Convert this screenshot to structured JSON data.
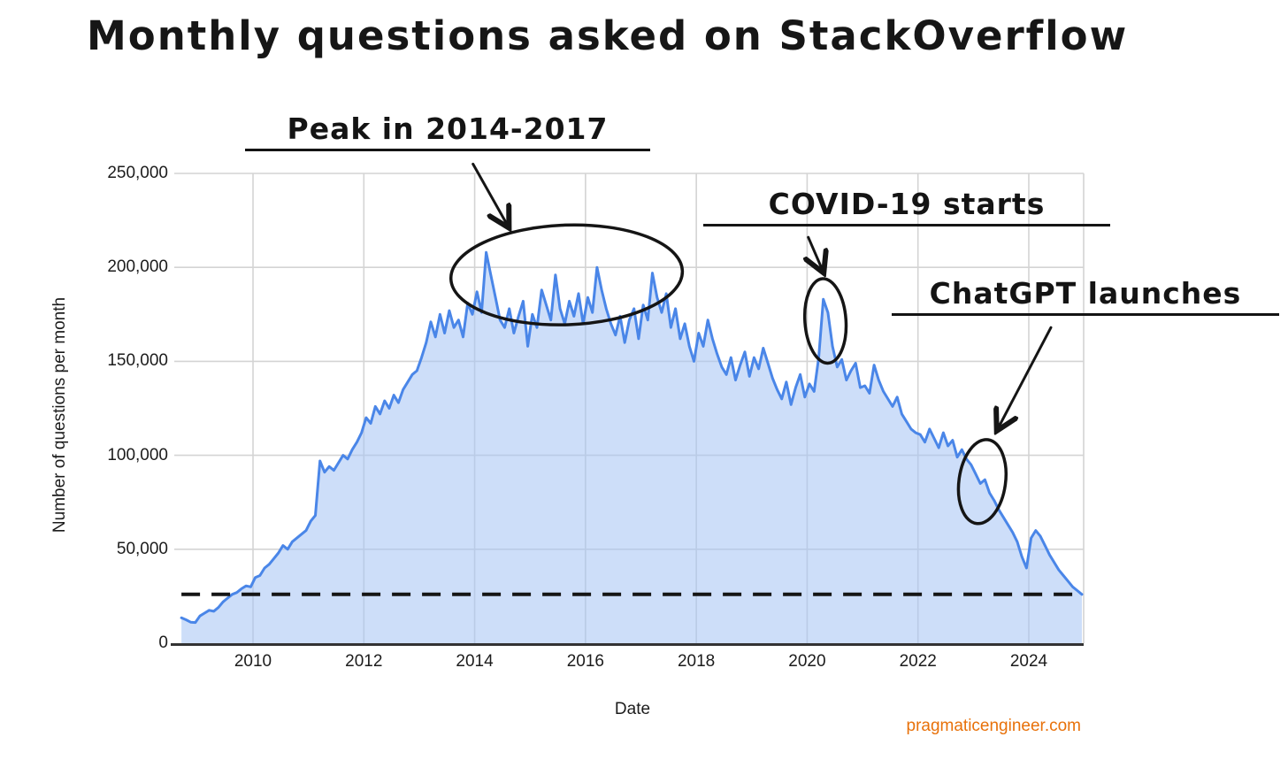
{
  "watermark": "pragmaticengineer.com",
  "colors": {
    "line": "#4a86e8",
    "fill": "rgba(164,194,244,0.55)",
    "grid": "#d4d4d4",
    "axis": "#333333",
    "dashed": "#151515",
    "annotation": "#151515",
    "watermark": "#e8710a"
  },
  "chart_data": {
    "type": "area",
    "title": "Monthly questions asked on StackOverflow",
    "xlabel": "Date",
    "ylabel": "Number of questions per month",
    "grid": true,
    "legend": "none",
    "x_domain": [
      2008.579,
      2024.99
    ],
    "y_domain": [
      0,
      250000
    ],
    "x_tick_years": [
      2010,
      2012,
      2014,
      2016,
      2018,
      2020,
      2022,
      2024
    ],
    "x_tick_labels": [
      "2010",
      "2012",
      "2014",
      "2016",
      "2018",
      "2020",
      "2022",
      "2024"
    ],
    "y_tick_values": [
      0,
      50000,
      100000,
      150000,
      200000,
      250000
    ],
    "y_tick_labels": [
      "0",
      "50,000",
      "100,000",
      "150,000",
      "200,000",
      "250,000"
    ],
    "series_name": "Questions per month",
    "frequency": "monthly",
    "series_start": "2008-09",
    "series_end": "2024-12",
    "values": [
      13500,
      12500,
      11200,
      11000,
      14500,
      16000,
      17500,
      17000,
      19000,
      22000,
      24000,
      26000,
      27000,
      29000,
      30500,
      30000,
      35000,
      36000,
      40000,
      42000,
      45000,
      48000,
      52000,
      50000,
      54000,
      56000,
      58000,
      60000,
      65000,
      68000,
      97000,
      91000,
      94000,
      92000,
      96000,
      100000,
      98000,
      103000,
      107000,
      112000,
      120000,
      117000,
      126000,
      122000,
      129000,
      125000,
      132000,
      128000,
      135000,
      139000,
      143000,
      145000,
      152000,
      160000,
      171000,
      163000,
      175000,
      165000,
      177000,
      168000,
      172000,
      163000,
      181000,
      175000,
      187000,
      176000,
      208000,
      196000,
      184000,
      172000,
      168000,
      178000,
      165000,
      174000,
      182000,
      158000,
      175000,
      168000,
      188000,
      180000,
      172000,
      196000,
      178000,
      170000,
      182000,
      174000,
      186000,
      170000,
      184000,
      176000,
      200000,
      188000,
      178000,
      170000,
      164000,
      174000,
      160000,
      172000,
      178000,
      162000,
      180000,
      172000,
      197000,
      184000,
      176000,
      186000,
      168000,
      178000,
      162000,
      170000,
      158000,
      150000,
      165000,
      158000,
      172000,
      162000,
      154000,
      147000,
      143000,
      152000,
      140000,
      148000,
      155000,
      142000,
      152000,
      146000,
      157000,
      149000,
      141000,
      135000,
      130000,
      139000,
      127000,
      136000,
      143000,
      131000,
      138000,
      134000,
      152000,
      183000,
      176000,
      158000,
      147000,
      151000,
      140000,
      145000,
      149000,
      136000,
      137000,
      133000,
      148000,
      140000,
      134000,
      130000,
      126000,
      131000,
      122000,
      118000,
      114000,
      112000,
      111000,
      107000,
      114000,
      109000,
      104000,
      112000,
      105000,
      108000,
      99000,
      103000,
      98000,
      95000,
      90000,
      85000,
      87000,
      80000,
      76000,
      71000,
      67000,
      63000,
      59000,
      54000,
      46000,
      40000,
      56000,
      60000,
      57000,
      52000,
      47000,
      43000,
      39000,
      36000,
      33000,
      30000,
      28000,
      26000
    ],
    "dashed_line_value": 26000,
    "annotations": [
      {
        "id": "peak",
        "label": "Peak in 2014-2017",
        "ellipse": {
          "cx_year": 2015.66,
          "cy_value": 196000,
          "rx_years": 2.09,
          "ry_value": 26500,
          "rotate_deg": -2
        },
        "arrow": {
          "x1_year": 2013.97,
          "y1_value": 255000,
          "x2_year": 2014.62,
          "y2_value": 221000
        }
      },
      {
        "id": "covid",
        "label": "COVID-19 starts",
        "ellipse": {
          "cx_year": 2020.33,
          "cy_value": 171500,
          "rx_years": 0.37,
          "ry_value": 22500,
          "rotate_deg": -4
        },
        "arrow": {
          "x1_year": 2020.02,
          "y1_value": 216000,
          "x2_year": 2020.3,
          "y2_value": 197000
        }
      },
      {
        "id": "chatgpt",
        "label": "ChatGPT launches",
        "ellipse": {
          "cx_year": 2023.16,
          "cy_value": 86000,
          "rx_years": 0.42,
          "ry_value": 22500,
          "rotate_deg": 8
        },
        "arrow": {
          "x1_year": 2024.4,
          "y1_value": 168000,
          "x2_year": 2023.42,
          "y2_value": 113000
        }
      }
    ]
  }
}
